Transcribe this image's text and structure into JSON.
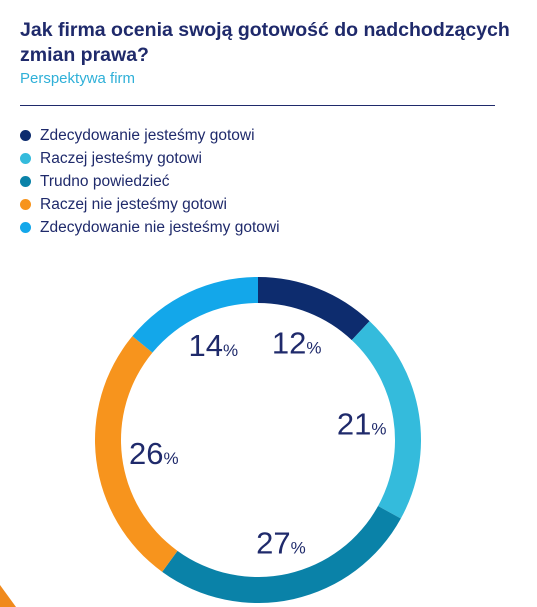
{
  "header": {
    "title": "Jak firma ocenia swoją gotowość do nadchodzących zmian prawa?",
    "subtitle": "Perspektywa firm"
  },
  "chart_data": {
    "type": "pie",
    "title": "Jak firma ocenia swoją gotowość do nadchodzących zmian prawa?",
    "subtitle": "Perspektywa firm",
    "legend_position": "top-left",
    "value_suffix": "%",
    "categories": [
      "Zdecydowanie jesteśmy gotowi",
      "Raczej jesteśmy gotowi",
      "Trudno powiedzieć",
      "Raczej nie jesteśmy gotowi",
      "Zdecydowanie nie jesteśmy gotowi"
    ],
    "values": [
      12,
      21,
      27,
      26,
      14
    ],
    "colors": [
      "#0d2c6e",
      "#34bbdc",
      "#0a82a8",
      "#f7941d",
      "#13a7ea"
    ]
  },
  "colors": {
    "title": "#1f2a6b",
    "subtitle": "#2fb0d8",
    "label": "#1f2a6b",
    "corner_accent": "#f08a1c"
  }
}
